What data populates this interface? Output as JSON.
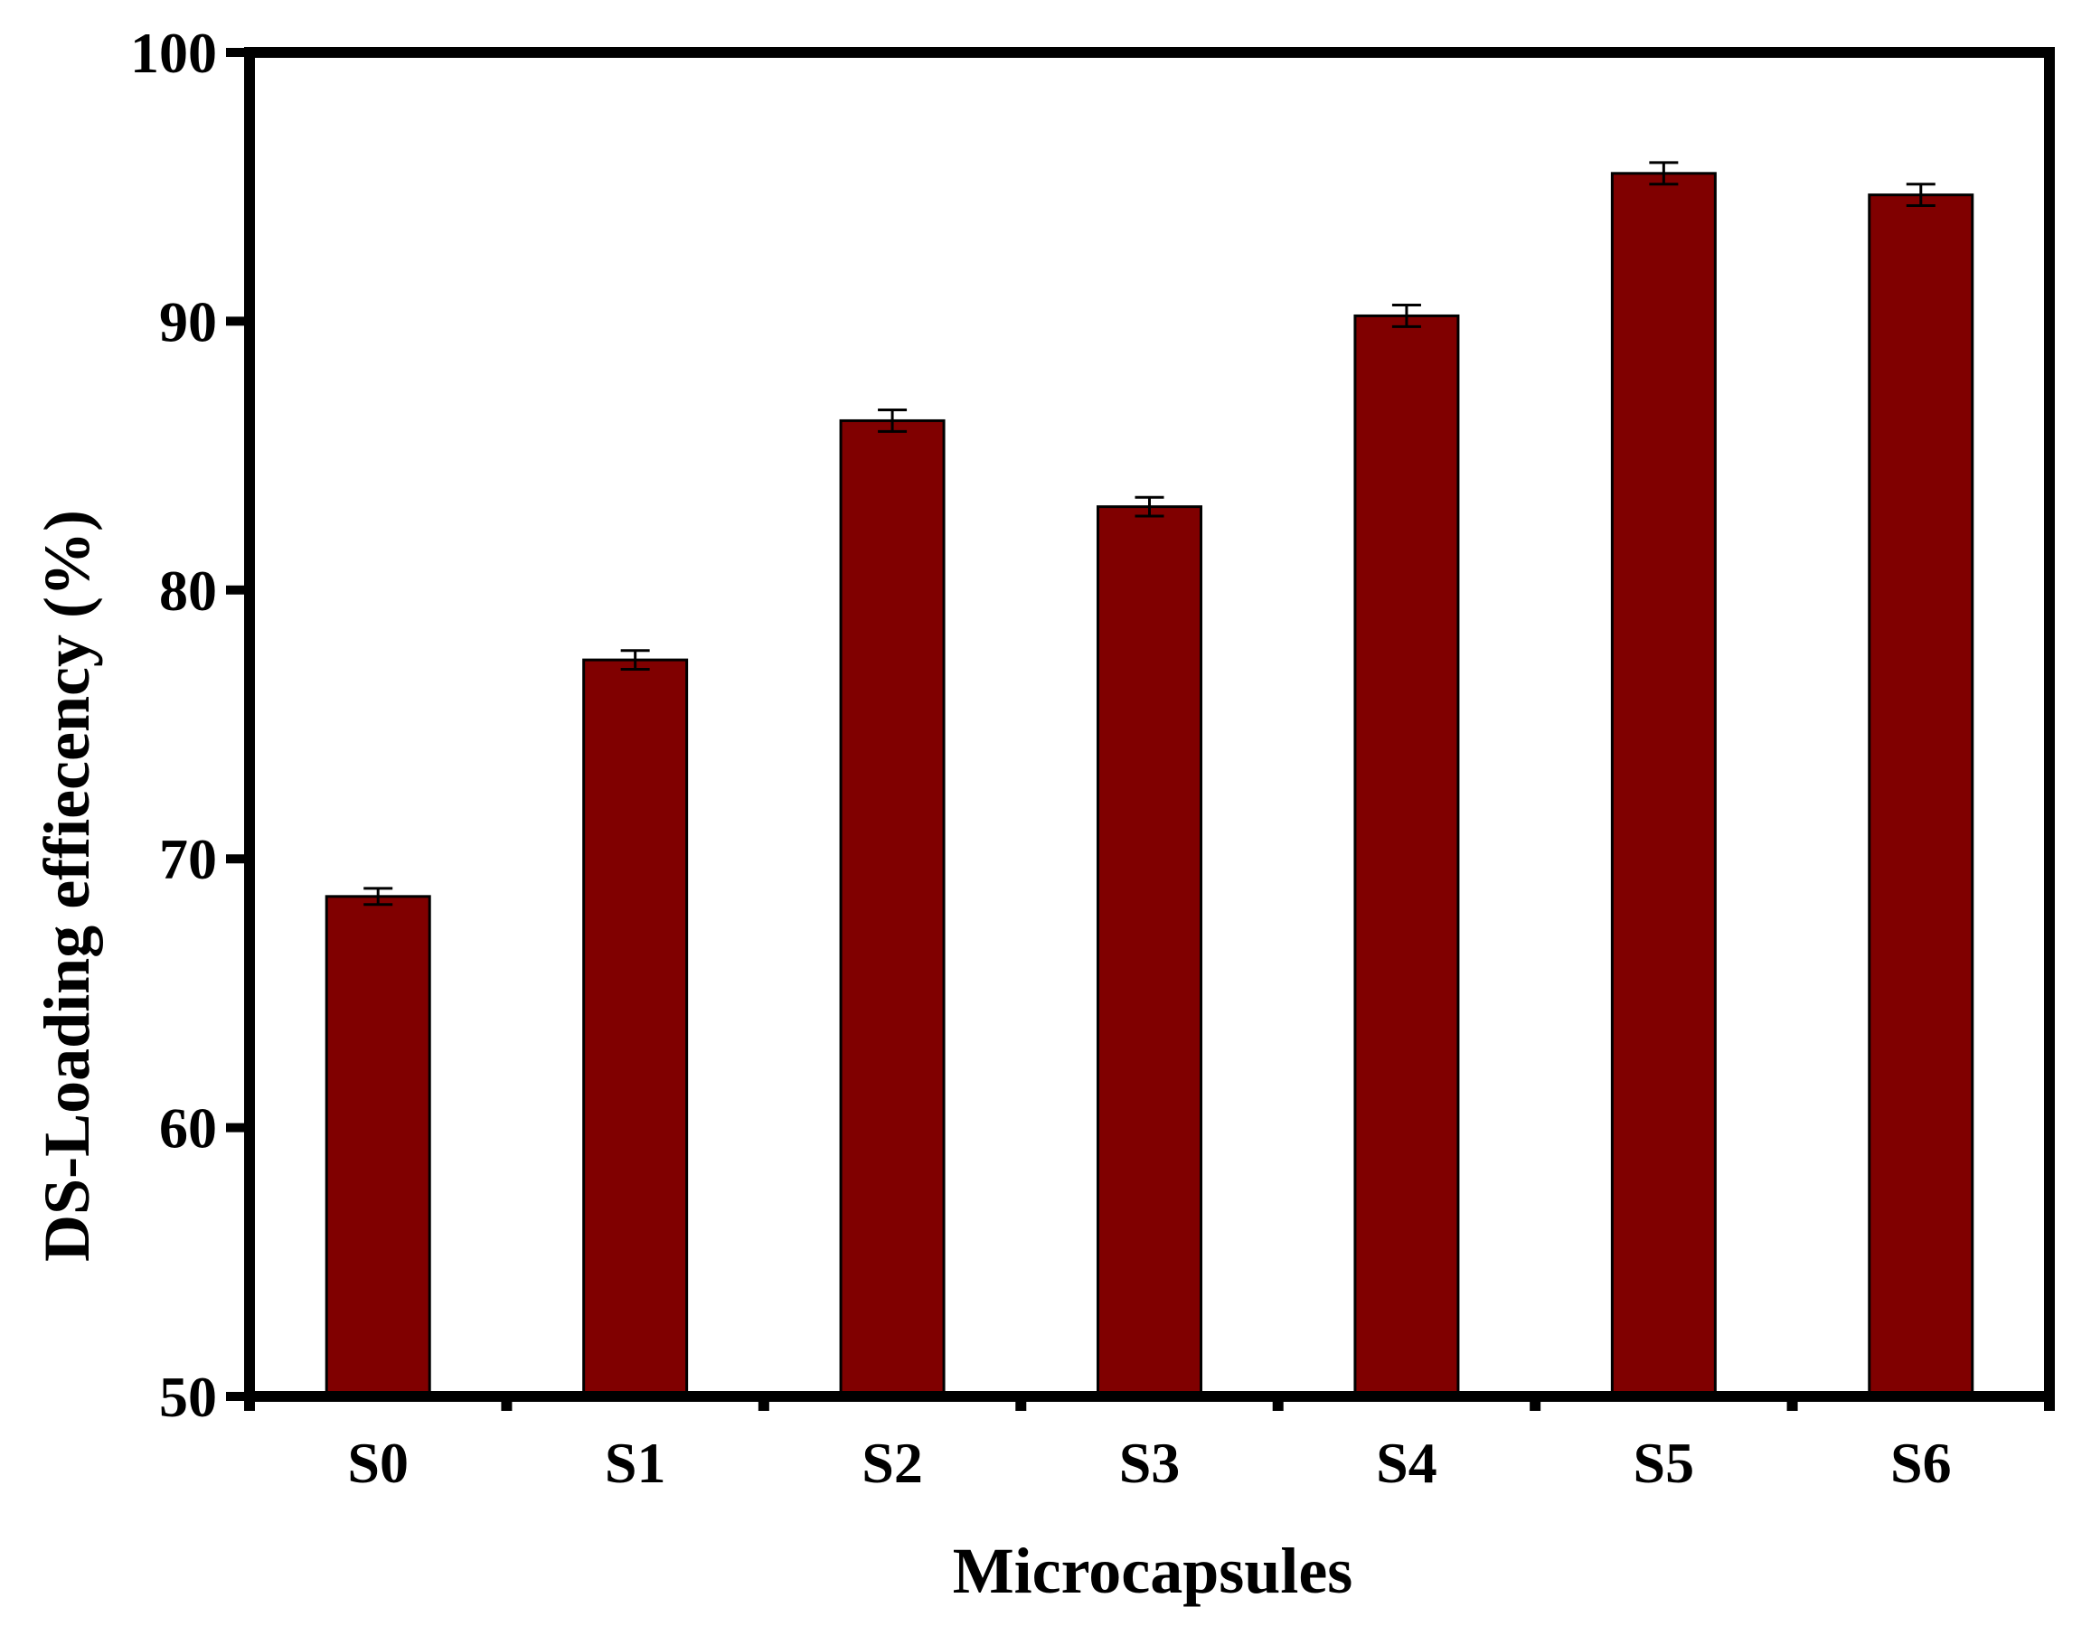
{
  "chart_data": {
    "type": "bar",
    "title": "",
    "xlabel": "Microcapsules",
    "ylabel": "DS-Loading effiecency (%)",
    "categories": [
      "S0",
      "S1",
      "S2",
      "S3",
      "S4",
      "S5",
      "S6"
    ],
    "series": [
      {
        "values": [
          68.6,
          77.4,
          86.3,
          83.1,
          90.2,
          95.5,
          94.7
        ],
        "errors": [
          0.3,
          0.35,
          0.4,
          0.35,
          0.4,
          0.4,
          0.4
        ]
      }
    ],
    "ylim": [
      50,
      100
    ],
    "yticks": [
      "50",
      "60",
      "70",
      "80",
      "90",
      "100"
    ],
    "grid": false,
    "legend": "none",
    "colors": {
      "bar": "#800000",
      "axis": "#000000",
      "error_bar": "#000000"
    }
  }
}
